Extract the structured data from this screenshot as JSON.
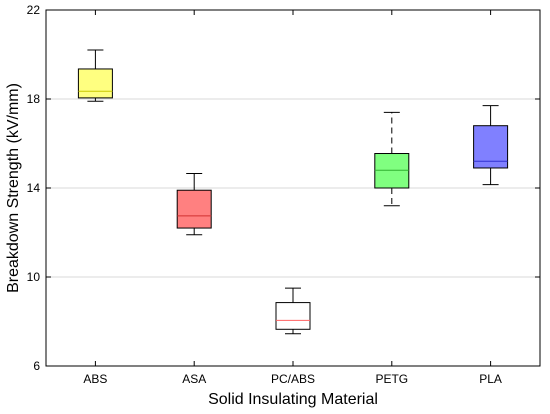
{
  "chart_data": {
    "type": "box",
    "xlabel": "Solid Insulating Material",
    "ylabel": "Breakdown Strength (kV/mm)",
    "ylim": [
      6,
      22
    ],
    "yticks": [
      6,
      10,
      14,
      18,
      22
    ],
    "grid": "horizontal",
    "categories": [
      "ABS",
      "ASA",
      "PC/ABS",
      "PETG",
      "PLA"
    ],
    "boxes": [
      {
        "category": "ABS",
        "whisker_low": 17.9,
        "q1": 18.05,
        "median": 18.35,
        "q3": 19.35,
        "whisker_high": 20.2,
        "fill": "#ffff80",
        "median_color": "#c8c800",
        "whisker_style": "solid"
      },
      {
        "category": "ASA",
        "whisker_low": 11.9,
        "q1": 12.2,
        "median": 12.75,
        "q3": 13.9,
        "whisker_high": 14.65,
        "fill": "#ff8080",
        "median_color": "#d03030",
        "whisker_style": "solid"
      },
      {
        "category": "PC/ABS",
        "whisker_low": 7.45,
        "q1": 7.65,
        "median": 8.05,
        "q3": 8.85,
        "whisker_high": 9.5,
        "fill": "#ffffff",
        "median_color": "#ff6060",
        "whisker_style": "solid"
      },
      {
        "category": "PETG",
        "whisker_low": 13.2,
        "q1": 14.0,
        "median": 14.8,
        "q3": 15.55,
        "whisker_high": 17.4,
        "fill": "#80ff80",
        "median_color": "#30b030",
        "whisker_style": "dashed"
      },
      {
        "category": "PLA",
        "whisker_low": 14.15,
        "q1": 14.9,
        "median": 15.2,
        "q3": 16.8,
        "whisker_high": 17.7,
        "fill": "#8080ff",
        "median_color": "#3030d0",
        "whisker_style": "solid"
      }
    ]
  }
}
